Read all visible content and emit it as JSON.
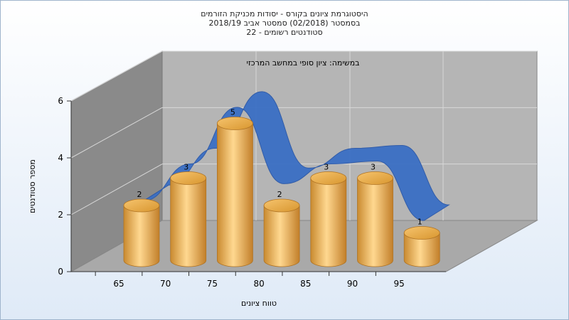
{
  "header": {
    "title_lines": [
      "היסטוגרמת ציונים בקורס - יסודות מכניקת הזורמים",
      "בסמסטר  (02/2018)  סמסטר אביב 2018/19",
      "סטודנטים רשומים - 22"
    ]
  },
  "legend": {
    "label": "במשימה: ציון סופי במחשב המרכזי"
  },
  "colors": {
    "bar": "#e8a84a",
    "bar_highlight": "#ffe0a0",
    "curve": "#3a6fc4",
    "back_wall": "#b5b5b5",
    "side_wall": "#8a8a8a",
    "floor": "#a9a9a9"
  },
  "chart_data": {
    "type": "bar",
    "title": "היסטוגרמת ציונים בקורס - יסודות מכניקת הזורמים",
    "xlabel": "טווח ציונים",
    "ylabel": "מספר סטודנטים",
    "x_tick_labels": [
      "65",
      "70",
      "75",
      "80",
      "85",
      "90",
      "95"
    ],
    "y_tick_labels": [
      "0",
      "2",
      "4",
      "6"
    ],
    "ylim": [
      0,
      6
    ],
    "series": [
      {
        "name": "",
        "values": [
          2,
          3,
          5,
          2,
          3,
          3,
          1
        ]
      }
    ],
    "data_labels": [
      "2",
      "3",
      "5",
      "2",
      "3",
      "3",
      "1"
    ],
    "curve_series": {
      "type": "line",
      "values": [
        1.7,
        3.0,
        5.0,
        2.3,
        3.0,
        3.1,
        1.0
      ]
    },
    "grid": true,
    "style": "3d-cylinder"
  }
}
